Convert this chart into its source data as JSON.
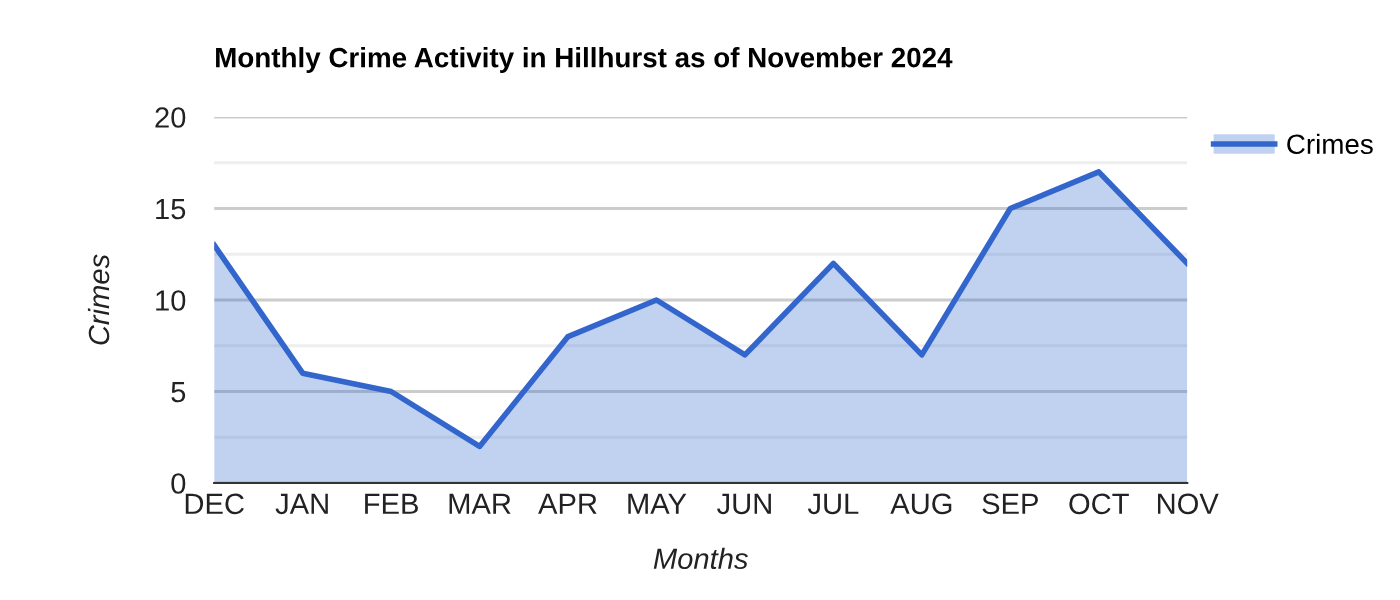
{
  "chart_data": {
    "type": "area",
    "title": "Monthly Crime Activity in Hillhurst as of November 2024",
    "xlabel": "Months",
    "ylabel": "Crimes",
    "categories": [
      "DEC",
      "JAN",
      "FEB",
      "MAR",
      "APR",
      "MAY",
      "JUN",
      "JUL",
      "AUG",
      "SEP",
      "OCT",
      "NOV"
    ],
    "series": [
      {
        "name": "Crimes",
        "color": "#3366cc",
        "values": [
          13,
          6,
          5,
          2,
          8,
          10,
          7,
          12,
          7,
          15,
          17,
          12
        ]
      }
    ],
    "ylim": [
      0,
      20
    ],
    "yticks": [
      0,
      {
        "value": 2.5,
        "label": null
      },
      5,
      {
        "value": 7.5,
        "label": null
      },
      10,
      {
        "value": 12.5,
        "label": null
      },
      15,
      {
        "value": 17.5,
        "label": null
      },
      20
    ],
    "grid": "y",
    "legend": "right"
  }
}
